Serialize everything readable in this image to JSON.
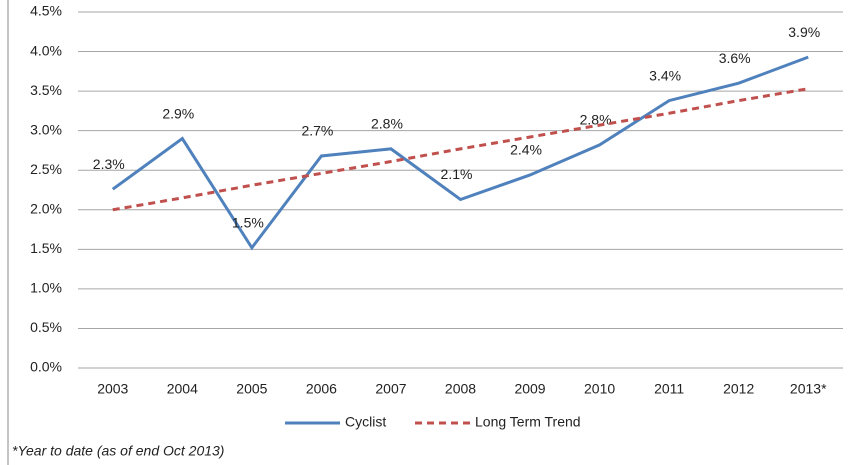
{
  "chart_data": {
    "type": "line",
    "categories": [
      "2003",
      "2004",
      "2005",
      "2006",
      "2007",
      "2008",
      "2009",
      "2010",
      "2011",
      "2012",
      "2013*"
    ],
    "series": [
      {
        "name": "Cyclist",
        "color": "#4f81bd",
        "dash": false,
        "values": [
          2.26,
          2.9,
          1.52,
          2.68,
          2.77,
          2.13,
          2.44,
          2.82,
          3.38,
          3.6,
          3.93
        ],
        "value_labels": [
          "2.3%",
          "2.9%",
          "1.5%",
          "2.7%",
          "2.8%",
          "2.1%",
          "2.4%",
          "2.8%",
          "3.4%",
          "3.6%",
          "3.9%"
        ]
      },
      {
        "name": "Long Term Trend",
        "color": "#c0504d",
        "dash": true,
        "values": [
          2.0,
          2.15,
          2.31,
          2.46,
          2.61,
          2.77,
          2.92,
          3.07,
          3.22,
          3.38,
          3.53
        ]
      }
    ],
    "ylim": [
      0,
      4.5
    ],
    "yticks": [
      {
        "value": 0,
        "label": "0.0%"
      },
      {
        "value": 0.5,
        "label": "0.5%"
      },
      {
        "value": 1,
        "label": "1.0%"
      },
      {
        "value": 1.5,
        "label": "1.5%"
      },
      {
        "value": 2,
        "label": "2.0%"
      },
      {
        "value": 2.5,
        "label": "2.5%"
      },
      {
        "value": 3,
        "label": "3.0%"
      },
      {
        "value": 3.5,
        "label": "3.5%"
      },
      {
        "value": 4,
        "label": "4.0%"
      },
      {
        "value": 4.5,
        "label": "4.5%"
      }
    ],
    "grid": true,
    "legend": "bottom",
    "footnote": "*Year to date (as of end Oct 2013)"
  }
}
